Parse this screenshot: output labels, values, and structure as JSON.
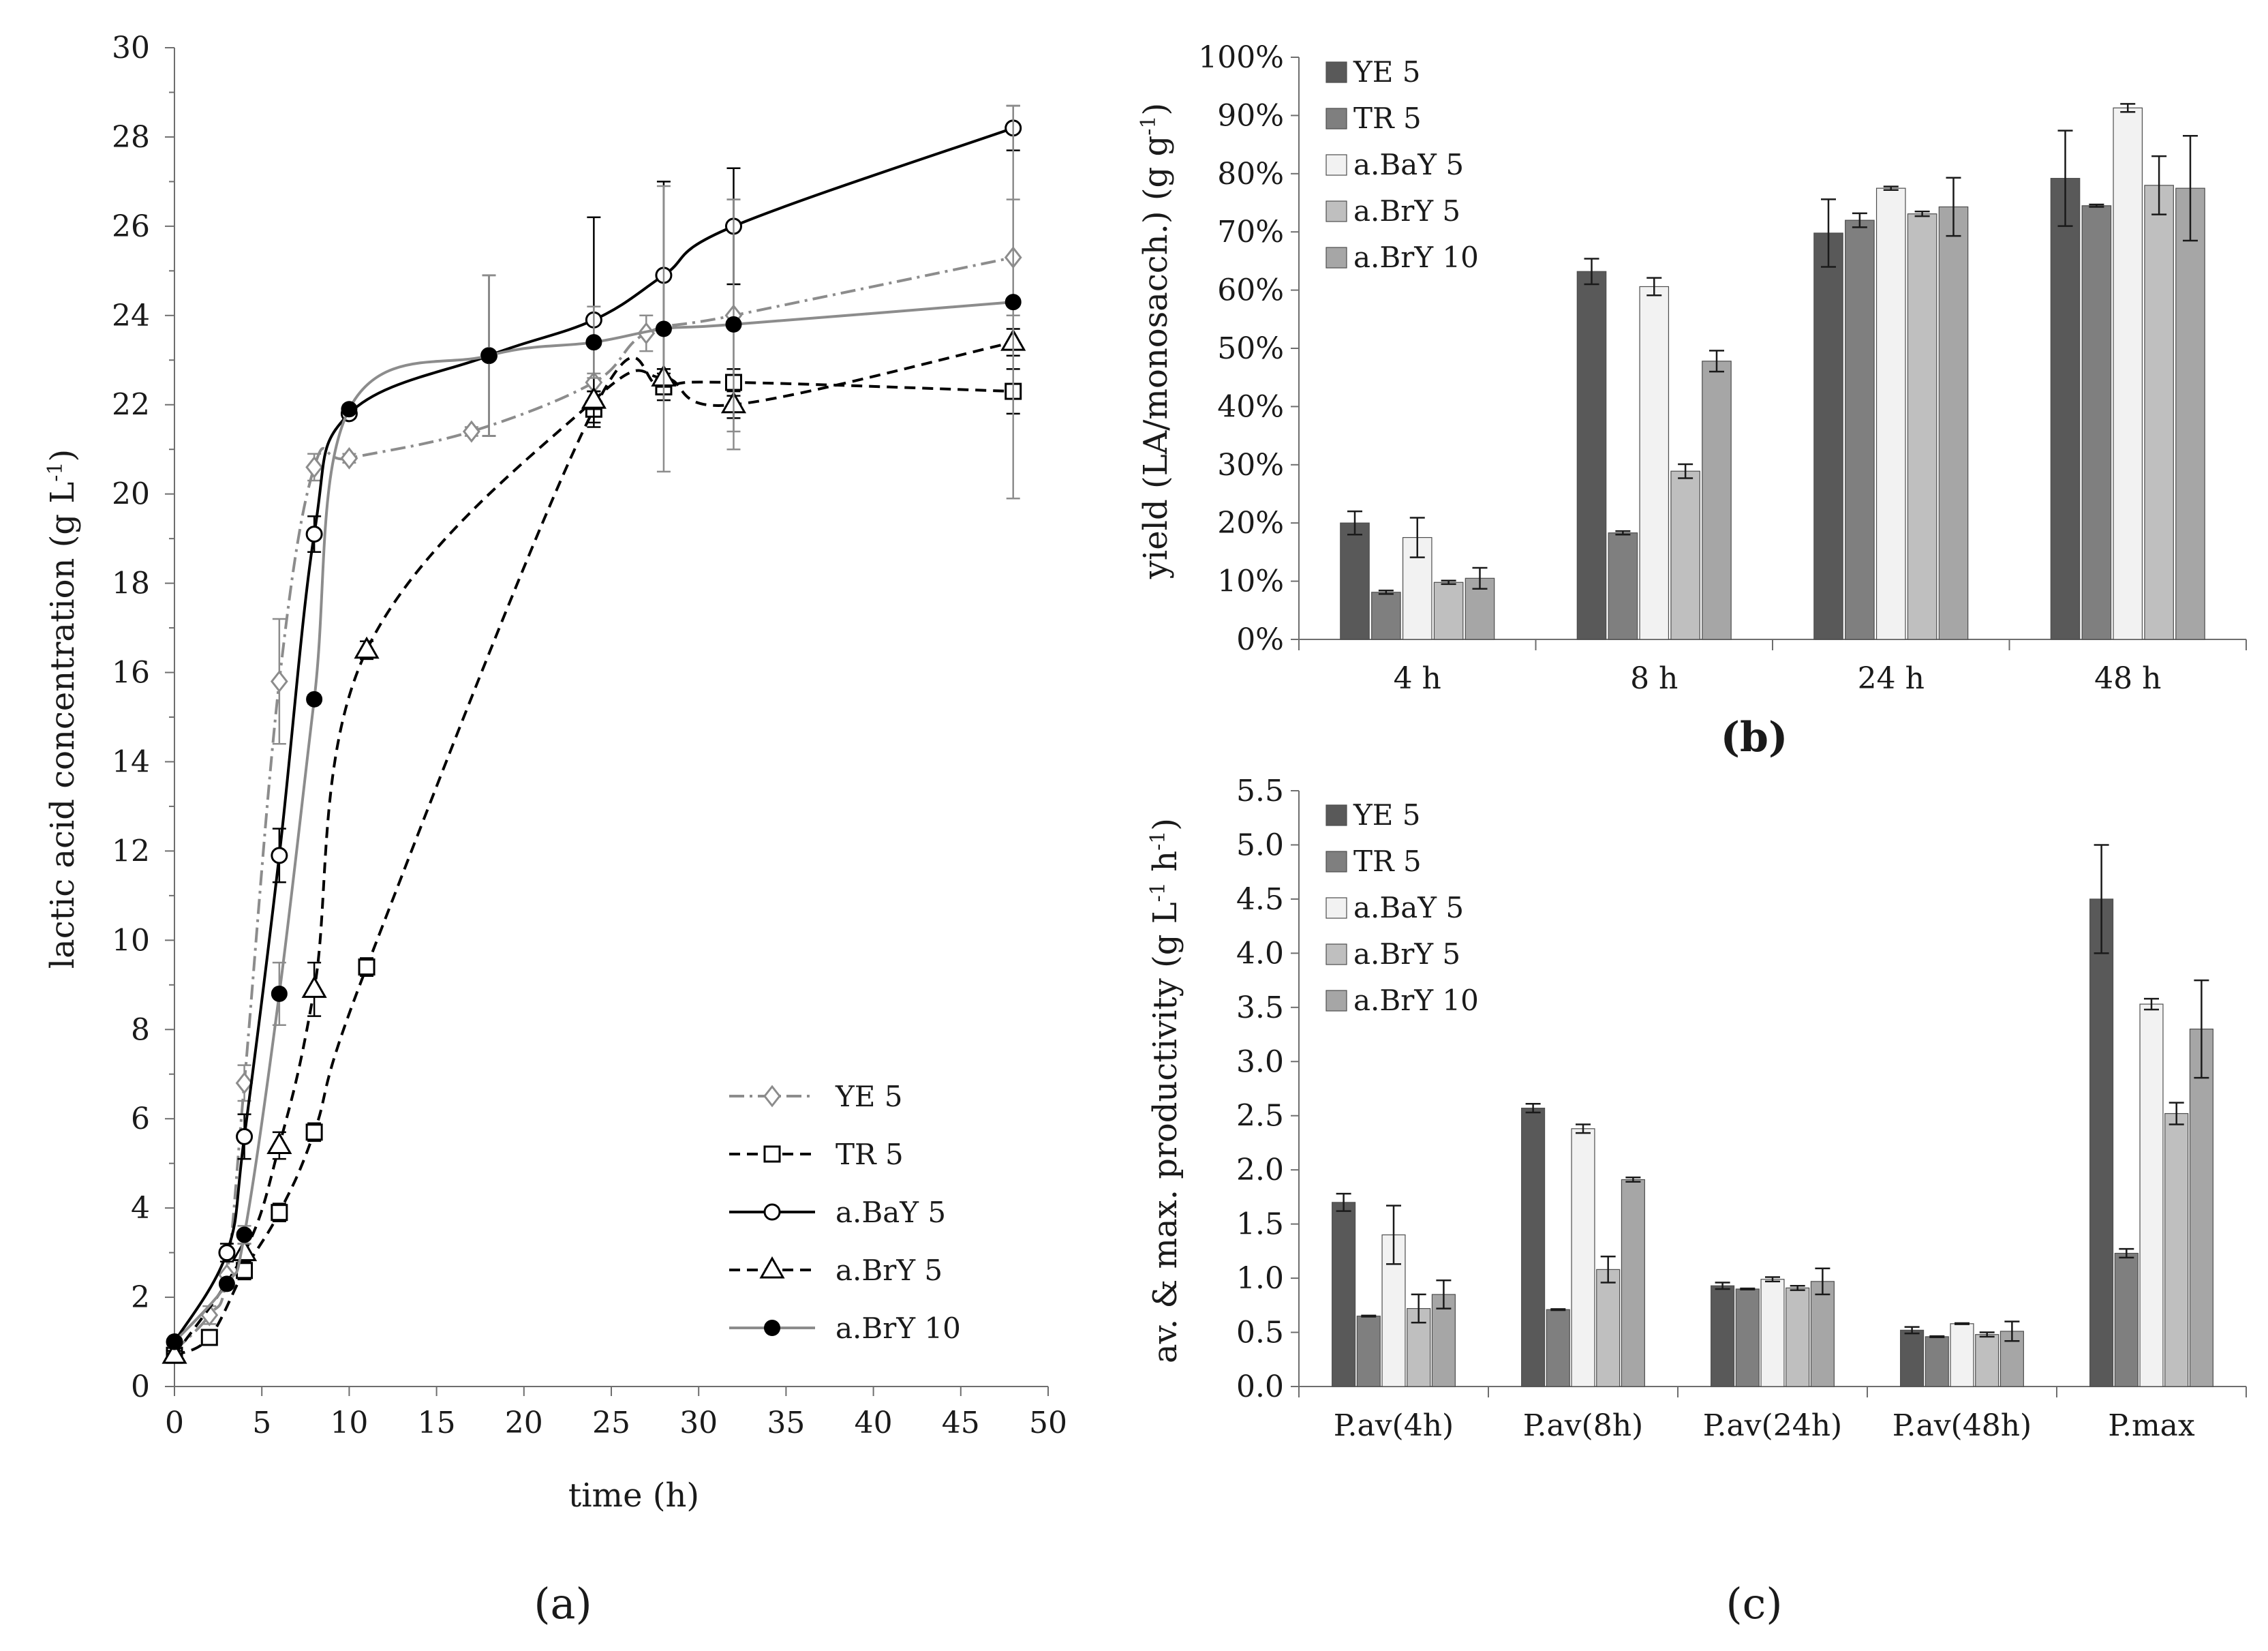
{
  "chart_data": [
    {
      "id": "a",
      "type": "line",
      "panel_label": "(a)",
      "xlabel": "time (h)",
      "ylabel": "lactic acid concentration (g L-1)",
      "ylabel_main": "lactic acid concentration (g L",
      "ylabel_sup": "-1",
      "ylabel_end": ")",
      "xlim": [
        0,
        50
      ],
      "ylim": [
        0,
        30
      ],
      "xticks": [
        0,
        5,
        10,
        15,
        20,
        25,
        30,
        35,
        40,
        45,
        50
      ],
      "yticks": [
        0,
        2,
        4,
        6,
        8,
        10,
        12,
        14,
        16,
        18,
        20,
        22,
        24,
        26,
        28,
        30
      ],
      "legend_position": "bottom-right",
      "series": [
        {
          "name": "YE 5",
          "color": "#8c8c8c",
          "dash": "dashdot",
          "marker": "diamond",
          "x": [
            0,
            2,
            3,
            4,
            6,
            8,
            10,
            17,
            24,
            27,
            32,
            48
          ],
          "y": [
            0.8,
            1.6,
            2.5,
            6.8,
            15.8,
            20.6,
            20.8,
            21.4,
            22.5,
            23.6,
            24.0,
            25.3
          ],
          "err": [
            0.1,
            0.2,
            0.3,
            0.4,
            1.4,
            0.3,
            0.1,
            0.1,
            0.2,
            0.4,
            2.6,
            1.3
          ]
        },
        {
          "name": "TR 5",
          "color": "#000000",
          "dash": "dashed",
          "marker": "square",
          "x": [
            0,
            2,
            4,
            6,
            8,
            11,
            24,
            28,
            32,
            48
          ],
          "y": [
            0.7,
            1.1,
            2.6,
            3.9,
            5.7,
            9.4,
            21.9,
            22.4,
            22.5,
            22.3
          ],
          "err": [
            0.1,
            0.1,
            0.2,
            0.2,
            0.2,
            0.2,
            0.4,
            0.3,
            0.3,
            0.5
          ]
        },
        {
          "name": "a.BaY 5",
          "color": "#000000",
          "dash": "solid",
          "marker": "circle-open",
          "x": [
            0,
            3,
            4,
            6,
            8,
            10,
            18,
            24,
            28,
            32,
            48
          ],
          "y": [
            1.0,
            3.0,
            5.6,
            11.9,
            19.1,
            21.8,
            23.1,
            23.9,
            24.9,
            26.0,
            28.2
          ],
          "err": [
            0.1,
            0.2,
            0.5,
            0.6,
            0.4,
            0.1,
            1.8,
            2.3,
            2.1,
            1.3,
            0.5
          ]
        },
        {
          "name": "a.BrY 5",
          "color": "#000000",
          "dash": "dashed",
          "marker": "triangle",
          "x": [
            0,
            4,
            6,
            8,
            11,
            24,
            28,
            32,
            48
          ],
          "y": [
            0.7,
            3.0,
            5.4,
            8.9,
            16.5,
            22.1,
            22.6,
            22.0,
            23.4
          ],
          "err": [
            0.1,
            0.2,
            0.3,
            0.6,
            0.2,
            0.2,
            0.2,
            0.3,
            0.3
          ]
        },
        {
          "name": "a.BrY 10",
          "color": "#8c8c8c",
          "dash": "solid",
          "marker": "circle-filled",
          "x": [
            0,
            3,
            4,
            6,
            8,
            10,
            18,
            24,
            28,
            32,
            48
          ],
          "y": [
            1.0,
            2.3,
            3.4,
            8.8,
            15.4,
            21.9,
            23.1,
            23.4,
            23.7,
            23.8,
            24.3
          ],
          "err": [
            0.1,
            0.1,
            0.2,
            0.7,
            0.1,
            0.1,
            1.8,
            0.8,
            3.2,
            2.8,
            4.4
          ]
        }
      ]
    },
    {
      "id": "b",
      "type": "bar",
      "panel_label": "(b)",
      "ylabel": "yield (LA/monosacch.) (g g-1)",
      "ylabel_main": "yield (LA/monosacch.) (g g",
      "ylabel_sup": "-1",
      "ylabel_end": ")",
      "categories": [
        "4 h",
        "8 h",
        "24 h",
        "48 h"
      ],
      "ylim": [
        0,
        100
      ],
      "yticks": [
        "0%",
        "10%",
        "20%",
        "30%",
        "40%",
        "50%",
        "60%",
        "70%",
        "80%",
        "90%",
        "100%"
      ],
      "legend_position": "top-left",
      "series": [
        {
          "name": "YE 5",
          "color": "#595959",
          "values": [
            20.0,
            63.2,
            69.8,
            79.2
          ],
          "err": [
            2.0,
            2.2,
            5.8,
            8.2
          ]
        },
        {
          "name": "TR 5",
          "color": "#7f7f7f",
          "values": [
            8.1,
            18.3,
            72.0,
            74.5
          ],
          "err": [
            0.3,
            0.3,
            1.2,
            0.2
          ]
        },
        {
          "name": "a.BaY 5",
          "color": "#f2f2f2",
          "values": [
            17.5,
            60.6,
            77.5,
            91.3
          ],
          "err": [
            3.4,
            1.5,
            0.3,
            0.7
          ]
        },
        {
          "name": "a.BrY 5",
          "color": "#bfbfbf",
          "values": [
            9.8,
            28.9,
            73.1,
            78.0
          ],
          "err": [
            0.3,
            1.2,
            0.4,
            5.0
          ]
        },
        {
          "name": "a.BrY 10",
          "color": "#a6a6a6",
          "values": [
            10.5,
            47.8,
            74.3,
            77.5
          ],
          "err": [
            1.8,
            1.8,
            5.0,
            9.0
          ]
        }
      ]
    },
    {
      "id": "c",
      "type": "bar",
      "panel_label": "(c)",
      "ylabel": "av. & max. productivity (g L-1 h-1)",
      "ylabel_main": "av. & max. productivity (g L",
      "ylabel_sup": "-1",
      "ylabel_mid": " h",
      "ylabel_sup2": "-1",
      "ylabel_end": ")",
      "categories": [
        "P.av(4h)",
        "P.av(8h)",
        "P.av(24h)",
        "P.av(48h)",
        "P.max"
      ],
      "ylim": [
        0,
        5.5
      ],
      "yticks": [
        "0.0",
        "0.5",
        "1.0",
        "1.5",
        "2.0",
        "2.5",
        "3.0",
        "3.5",
        "4.0",
        "4.5",
        "5.0",
        "5.5"
      ],
      "legend_position": "top-left",
      "series": [
        {
          "name": "YE 5",
          "color": "#595959",
          "values": [
            1.7,
            2.57,
            0.93,
            0.52,
            4.5
          ],
          "err": [
            0.08,
            0.04,
            0.03,
            0.03,
            0.5
          ]
        },
        {
          "name": "TR 5",
          "color": "#7f7f7f",
          "values": [
            0.65,
            0.71,
            0.9,
            0.46,
            1.23
          ],
          "err": [
            0.005,
            0.005,
            0.005,
            0.005,
            0.04
          ]
        },
        {
          "name": "a.BaY 5",
          "color": "#f2f2f2",
          "values": [
            1.4,
            2.38,
            0.99,
            0.58,
            3.53
          ],
          "err": [
            0.27,
            0.04,
            0.02,
            0.005,
            0.05
          ]
        },
        {
          "name": "a.BrY 5",
          "color": "#bfbfbf",
          "values": [
            0.72,
            1.08,
            0.91,
            0.48,
            2.52
          ],
          "err": [
            0.13,
            0.12,
            0.02,
            0.02,
            0.1
          ]
        },
        {
          "name": "a.BrY 10",
          "color": "#a6a6a6",
          "values": [
            0.85,
            1.91,
            0.97,
            0.51,
            3.3
          ],
          "err": [
            0.13,
            0.02,
            0.12,
            0.09,
            0.45
          ]
        }
      ]
    }
  ]
}
